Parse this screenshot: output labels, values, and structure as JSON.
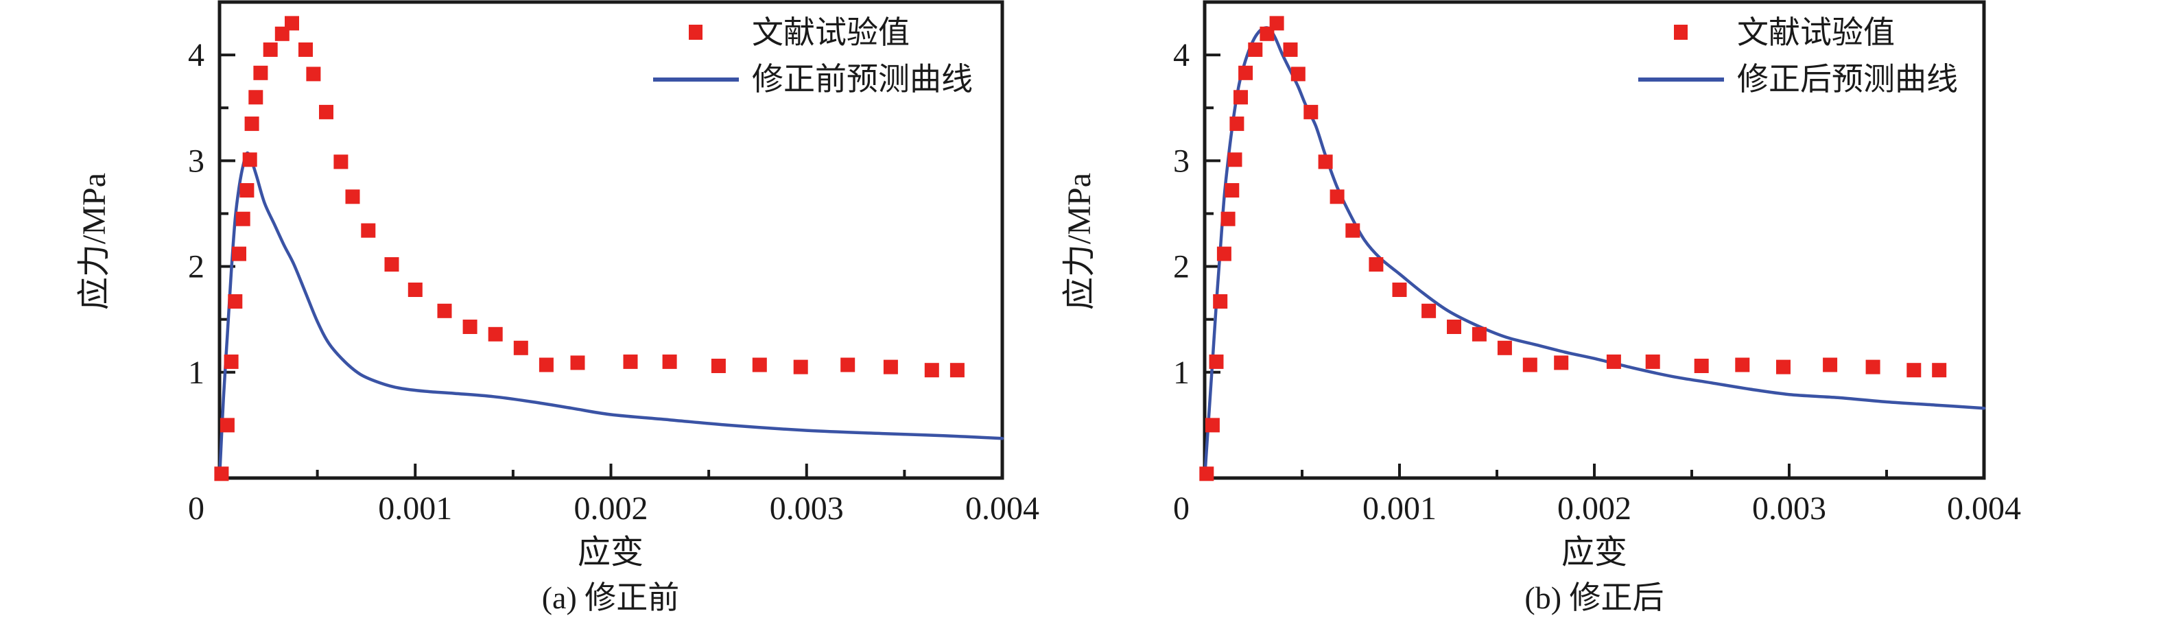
{
  "figure": {
    "background": "#ffffff",
    "colors": {
      "scatter_red": "#e8231f",
      "curve_blue": "#3a53a5",
      "axis_black": "#1a1a1a"
    }
  },
  "chart_data": [
    {
      "id": "a",
      "type": "scatter+line",
      "caption": "(a) 修正前",
      "xlabel": "应变",
      "ylabel": "应力/MPa",
      "xlim": [
        0,
        0.004
      ],
      "ylim": [
        0,
        4.5
      ],
      "x_ticks": [
        0,
        0.001,
        0.002,
        0.003,
        0.004
      ],
      "x_tick_labels": [
        "0",
        "0.001",
        "0.002",
        "0.003",
        "0.004"
      ],
      "x_minor_ticks": [
        0.0005,
        0.0015,
        0.0025,
        0.0035
      ],
      "y_ticks": [
        1,
        2,
        3,
        4
      ],
      "y_tick_labels": [
        "1",
        "2",
        "3",
        "4"
      ],
      "y_minor_ticks": [
        0.5,
        1.5,
        2.5,
        3.5
      ],
      "grid": false,
      "legend_position": "top-right",
      "legend": [
        {
          "label": "文献试验值",
          "marker": "square",
          "color": "#e8231f"
        },
        {
          "label": "修正前预测曲线",
          "marker": "line",
          "color": "#3a53a5"
        }
      ],
      "series": [
        {
          "name": "文献试验值",
          "type": "scatter",
          "color": "#e8231f",
          "points": [
            [
              1e-05,
              0.04
            ],
            [
              4e-05,
              0.5
            ],
            [
              6e-05,
              1.1
            ],
            [
              8e-05,
              1.67
            ],
            [
              0.0001,
              2.12
            ],
            [
              0.00012,
              2.45
            ],
            [
              0.00014,
              2.72
            ],
            [
              0.000155,
              3.01
            ],
            [
              0.000165,
              3.35
            ],
            [
              0.000185,
              3.6
            ],
            [
              0.00021,
              3.83
            ],
            [
              0.00026,
              4.05
            ],
            [
              0.00032,
              4.2
            ],
            [
              0.00037,
              4.3
            ],
            [
              0.00044,
              4.05
            ],
            [
              0.00048,
              3.82
            ],
            [
              0.000545,
              3.46
            ],
            [
              0.00062,
              2.99
            ],
            [
              0.00068,
              2.66
            ],
            [
              0.00076,
              2.34
            ],
            [
              0.00088,
              2.02
            ],
            [
              0.001,
              1.78
            ],
            [
              0.00115,
              1.58
            ],
            [
              0.00128,
              1.43
            ],
            [
              0.00141,
              1.36
            ],
            [
              0.00154,
              1.23
            ],
            [
              0.00167,
              1.07
            ],
            [
              0.00183,
              1.09
            ],
            [
              0.0021,
              1.1
            ],
            [
              0.0023,
              1.1
            ],
            [
              0.00255,
              1.06
            ],
            [
              0.00276,
              1.07
            ],
            [
              0.00297,
              1.05
            ],
            [
              0.00321,
              1.07
            ],
            [
              0.00343,
              1.05
            ],
            [
              0.00364,
              1.02
            ],
            [
              0.00377,
              1.02
            ]
          ]
        },
        {
          "name": "修正前预测曲线",
          "type": "line",
          "color": "#3a53a5",
          "points": [
            [
              0,
              0
            ],
            [
              2e-05,
              0.75
            ],
            [
              4e-05,
              1.35
            ],
            [
              6e-05,
              1.95
            ],
            [
              8e-05,
              2.45
            ],
            [
              0.0001,
              2.75
            ],
            [
              0.00012,
              2.95
            ],
            [
              0.00014,
              3.07
            ],
            [
              0.00016,
              3.02
            ],
            [
              0.00019,
              2.85
            ],
            [
              0.00023,
              2.6
            ],
            [
              0.00028,
              2.4
            ],
            [
              0.00033,
              2.2
            ],
            [
              0.00038,
              2.02
            ],
            [
              0.00044,
              1.75
            ],
            [
              0.0005,
              1.48
            ],
            [
              0.00056,
              1.27
            ],
            [
              0.00064,
              1.1
            ],
            [
              0.00072,
              0.98
            ],
            [
              0.00082,
              0.9
            ],
            [
              0.00092,
              0.85
            ],
            [
              0.00105,
              0.82
            ],
            [
              0.0012,
              0.8
            ],
            [
              0.0014,
              0.77
            ],
            [
              0.0016,
              0.72
            ],
            [
              0.0018,
              0.66
            ],
            [
              0.002,
              0.6
            ],
            [
              0.0023,
              0.55
            ],
            [
              0.0026,
              0.5
            ],
            [
              0.003,
              0.45
            ],
            [
              0.0034,
              0.42
            ],
            [
              0.0037,
              0.4
            ],
            [
              0.004,
              0.375
            ]
          ]
        }
      ]
    },
    {
      "id": "b",
      "type": "scatter+line",
      "caption": "(b) 修正后",
      "xlabel": "应变",
      "ylabel": "应力/MPa",
      "xlim": [
        0,
        0.004
      ],
      "ylim": [
        0,
        4.5
      ],
      "x_ticks": [
        0,
        0.001,
        0.002,
        0.003,
        0.004
      ],
      "x_tick_labels": [
        "0",
        "0.001",
        "0.002",
        "0.003",
        "0.004"
      ],
      "x_minor_ticks": [
        0.0005,
        0.0015,
        0.0025,
        0.0035
      ],
      "y_ticks": [
        1,
        2,
        3,
        4
      ],
      "y_tick_labels": [
        "1",
        "2",
        "3",
        "4"
      ],
      "y_minor_ticks": [
        0.5,
        1.5,
        2.5,
        3.5
      ],
      "grid": false,
      "legend_position": "top-right",
      "legend": [
        {
          "label": "文献试验值",
          "marker": "square",
          "color": "#e8231f"
        },
        {
          "label": "修正后预测曲线",
          "marker": "line",
          "color": "#3a53a5"
        }
      ],
      "series": [
        {
          "name": "文献试验值",
          "type": "scatter",
          "color": "#e8231f",
          "points": [
            [
              1e-05,
              0.04
            ],
            [
              4e-05,
              0.5
            ],
            [
              6e-05,
              1.1
            ],
            [
              8e-05,
              1.67
            ],
            [
              0.0001,
              2.12
            ],
            [
              0.00012,
              2.45
            ],
            [
              0.00014,
              2.72
            ],
            [
              0.000155,
              3.01
            ],
            [
              0.000165,
              3.35
            ],
            [
              0.000185,
              3.6
            ],
            [
              0.00021,
              3.83
            ],
            [
              0.00026,
              4.05
            ],
            [
              0.00032,
              4.2
            ],
            [
              0.00037,
              4.3
            ],
            [
              0.00044,
              4.05
            ],
            [
              0.00048,
              3.82
            ],
            [
              0.000545,
              3.46
            ],
            [
              0.00062,
              2.99
            ],
            [
              0.00068,
              2.66
            ],
            [
              0.00076,
              2.34
            ],
            [
              0.00088,
              2.02
            ],
            [
              0.001,
              1.78
            ],
            [
              0.00115,
              1.58
            ],
            [
              0.00128,
              1.43
            ],
            [
              0.00141,
              1.36
            ],
            [
              0.00154,
              1.23
            ],
            [
              0.00167,
              1.07
            ],
            [
              0.00183,
              1.09
            ],
            [
              0.0021,
              1.1
            ],
            [
              0.0023,
              1.1
            ],
            [
              0.00255,
              1.06
            ],
            [
              0.00276,
              1.07
            ],
            [
              0.00297,
              1.05
            ],
            [
              0.00321,
              1.07
            ],
            [
              0.00343,
              1.05
            ],
            [
              0.00364,
              1.02
            ],
            [
              0.00377,
              1.02
            ]
          ]
        },
        {
          "name": "修正后预测曲线",
          "type": "line",
          "color": "#3a53a5",
          "points": [
            [
              0,
              0
            ],
            [
              2e-05,
              0.55
            ],
            [
              4e-05,
              1.1
            ],
            [
              6e-05,
              1.65
            ],
            [
              8e-05,
              2.15
            ],
            [
              0.0001,
              2.65
            ],
            [
              0.00012,
              3.0
            ],
            [
              0.00014,
              3.3
            ],
            [
              0.00016,
              3.55
            ],
            [
              0.00018,
              3.75
            ],
            [
              0.00021,
              3.95
            ],
            [
              0.00024,
              4.1
            ],
            [
              0.00027,
              4.2
            ],
            [
              0.0003,
              4.25
            ],
            [
              0.00033,
              4.25
            ],
            [
              0.00036,
              4.17
            ],
            [
              0.0004,
              4.0
            ],
            [
              0.00044,
              3.85
            ],
            [
              0.00048,
              3.7
            ],
            [
              0.00052,
              3.52
            ],
            [
              0.00057,
              3.33
            ],
            [
              0.00062,
              3.05
            ],
            [
              0.00068,
              2.75
            ],
            [
              0.00075,
              2.48
            ],
            [
              0.00082,
              2.25
            ],
            [
              0.0009,
              2.08
            ],
            [
              0.001,
              1.93
            ],
            [
              0.00112,
              1.75
            ],
            [
              0.00125,
              1.58
            ],
            [
              0.0014,
              1.44
            ],
            [
              0.00155,
              1.33
            ],
            [
              0.0017,
              1.26
            ],
            [
              0.00185,
              1.19
            ],
            [
              0.002,
              1.13
            ],
            [
              0.0022,
              1.04
            ],
            [
              0.0024,
              0.96
            ],
            [
              0.0026,
              0.9
            ],
            [
              0.0028,
              0.84
            ],
            [
              0.003,
              0.79
            ],
            [
              0.00325,
              0.76
            ],
            [
              0.0035,
              0.72
            ],
            [
              0.00375,
              0.69
            ],
            [
              0.004,
              0.66
            ]
          ]
        }
      ]
    }
  ]
}
